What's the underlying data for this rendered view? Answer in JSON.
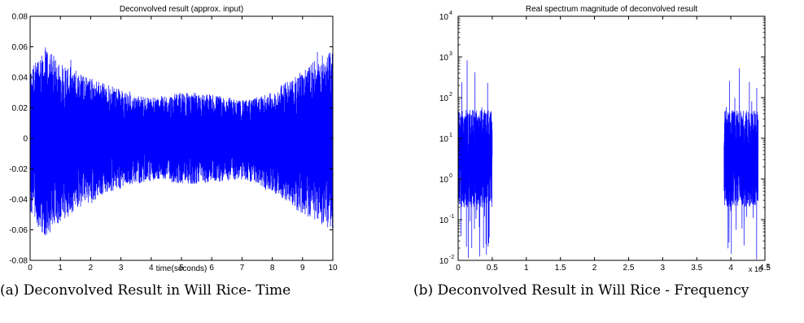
{
  "figures": [
    {
      "caption": "(a) Deconvolved Result in Will Rice- Time"
    },
    {
      "caption": "(b) Deconvolved Result in Will Rice - Frequency"
    }
  ],
  "chart_data": [
    {
      "type": "line",
      "title": "Deconvolved result (approx. input)",
      "xlabel": "time(seconds)",
      "ylabel": "",
      "xlim": [
        0,
        10
      ],
      "ylim": [
        -0.08,
        0.08
      ],
      "x_ticks": [
        0,
        1,
        2,
        3,
        4,
        5,
        6,
        7,
        8,
        9,
        10
      ],
      "y_ticks": [
        -0.08,
        -0.06,
        -0.04,
        -0.02,
        0,
        0.02,
        0.04,
        0.06,
        0.08
      ],
      "x_tick_labels": [
        "0",
        "1",
        "2",
        "3",
        "4",
        "5",
        "6",
        "7",
        "8",
        "9",
        "10"
      ],
      "y_tick_labels": [
        "-0.08",
        "-0.06",
        "-0.04",
        "-0.02",
        "0",
        "0.02",
        "0.04",
        "0.06",
        "0.08"
      ],
      "line_color": "#0000ff",
      "envelope": {
        "time": [
          0,
          0.5,
          1,
          1.5,
          2,
          2.5,
          3,
          3.5,
          4,
          4.5,
          5,
          5.5,
          6,
          6.5,
          7,
          7.5,
          8,
          8.5,
          9,
          9.5,
          10
        ],
        "upper": [
          0.045,
          0.06,
          0.05,
          0.045,
          0.04,
          0.036,
          0.032,
          0.028,
          0.027,
          0.028,
          0.03,
          0.03,
          0.029,
          0.027,
          0.025,
          0.027,
          0.03,
          0.038,
          0.045,
          0.052,
          0.06
        ],
        "lower": [
          -0.05,
          -0.065,
          -0.055,
          -0.048,
          -0.042,
          -0.037,
          -0.033,
          -0.03,
          -0.028,
          -0.028,
          -0.03,
          -0.03,
          -0.029,
          -0.028,
          -0.027,
          -0.03,
          -0.035,
          -0.042,
          -0.05,
          -0.055,
          -0.062
        ]
      }
    },
    {
      "type": "line",
      "title": "Real spectrum magnitude of deconvolved result",
      "xlabel": "",
      "ylabel": "",
      "xlim": [
        0,
        4.5
      ],
      "x_multiplier": "x 10^5",
      "ylim": [
        0.01,
        10000
      ],
      "y_scale": "log",
      "x_ticks": [
        0,
        0.5,
        1,
        1.5,
        2,
        2.5,
        3,
        3.5,
        4,
        4.5
      ],
      "x_tick_labels": [
        "0",
        "0.5",
        "1",
        "1.5",
        "2",
        "2.5",
        "3",
        "3.5",
        "4",
        "4.5"
      ],
      "y_ticks": [
        0.01,
        0.1,
        1,
        10,
        100,
        1000,
        10000
      ],
      "y_tick_labels": [
        "10",
        "10",
        "10",
        "10",
        "10",
        "10",
        "10"
      ],
      "y_tick_exponents": [
        "-2",
        "-1",
        "0",
        "1",
        "2",
        "3",
        "4"
      ],
      "line_color": "#0000ff",
      "bands": [
        {
          "x_start": 0,
          "x_end": 0.5,
          "typical_low": 0.2,
          "typical_high": 50,
          "min": 0.01,
          "max": 1200
        },
        {
          "x_start": 3.9,
          "x_end": 4.4,
          "typical_low": 0.2,
          "typical_high": 50,
          "min": 0.01,
          "max": 1200
        }
      ]
    }
  ]
}
